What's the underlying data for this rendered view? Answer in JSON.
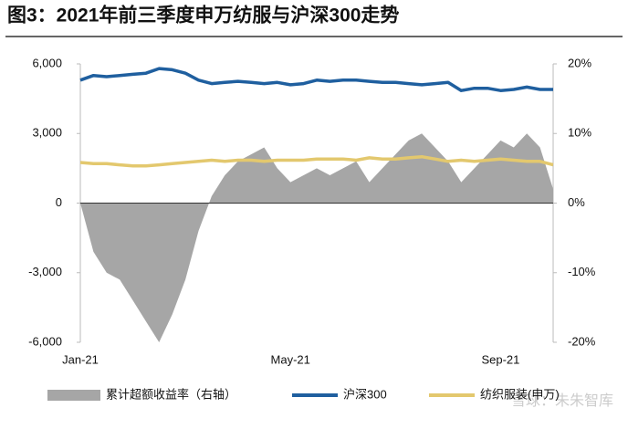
{
  "chart_data": {
    "type": "line",
    "title": "图3：2021年前三季度申万纺服与沪深300走势",
    "watermark": "雪球：朱朱智库",
    "categories": [
      "Jan-21",
      null,
      null,
      null,
      null,
      null,
      null,
      null,
      null,
      null,
      null,
      null,
      null,
      null,
      null,
      null,
      "May-21",
      null,
      null,
      null,
      null,
      null,
      null,
      null,
      null,
      null,
      null,
      null,
      null,
      null,
      null,
      null,
      "Sep-21",
      null,
      null,
      null,
      null
    ],
    "series": [
      {
        "name": "累计超额收益率（右轴）",
        "type": "area",
        "axis": "y2",
        "color": "#a6a6a6",
        "values": [
          0,
          -7,
          -10,
          -11,
          -14,
          -17,
          -20,
          -16,
          -11,
          -4,
          1,
          4,
          6,
          7,
          8,
          5,
          3,
          4,
          5,
          4,
          5,
          6,
          3,
          5,
          7,
          9,
          10,
          8,
          6,
          3,
          5,
          7,
          9,
          8,
          10,
          8,
          2
        ]
      },
      {
        "name": "沪深300",
        "type": "line",
        "color": "#1f5f9f",
        "values": [
          5300,
          5500,
          5450,
          5500,
          5550,
          5600,
          5800,
          5750,
          5600,
          5300,
          5150,
          5200,
          5250,
          5200,
          5150,
          5200,
          5100,
          5150,
          5300,
          5250,
          5300,
          5300,
          5250,
          5200,
          5200,
          5150,
          5100,
          5150,
          5200,
          4850,
          4950,
          4950,
          4850,
          4900,
          5000,
          4900,
          4900
        ]
      },
      {
        "name": "纺织服装(申万)",
        "type": "line",
        "color": "#e3c86e",
        "values": [
          1750,
          1700,
          1700,
          1650,
          1600,
          1600,
          1650,
          1700,
          1750,
          1800,
          1850,
          1800,
          1850,
          1850,
          1800,
          1850,
          1850,
          1850,
          1900,
          1900,
          1900,
          1850,
          1950,
          1900,
          1900,
          1950,
          2000,
          1900,
          1800,
          1850,
          1800,
          1850,
          1900,
          1850,
          1800,
          1800,
          1650
        ]
      }
    ],
    "ylim": [
      -6000,
      6000
    ],
    "yticks": [
      {
        "value": -6000,
        "label": "-6,000"
      },
      {
        "value": -3000,
        "label": "-3,000"
      },
      0,
      {
        "value": 3000,
        "label": "3,000"
      },
      {
        "value": 6000,
        "label": "6,000"
      }
    ],
    "y2lim": [
      -20,
      20
    ],
    "y2ticks": [
      {
        "value": -20,
        "label": "-20%"
      },
      {
        "value": -10,
        "label": "-10%"
      },
      {
        "value": 0,
        "label": "0%"
      },
      {
        "value": 10,
        "label": "10%"
      },
      {
        "value": 20,
        "label": "20%"
      }
    ],
    "legend": "bottom"
  }
}
